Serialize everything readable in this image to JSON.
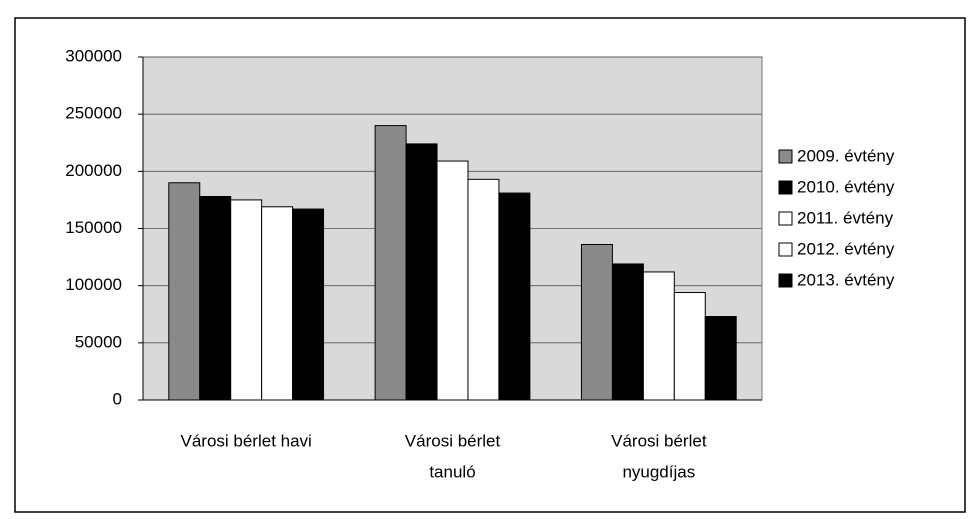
{
  "chart_data": {
    "type": "bar",
    "categories": [
      [
        "Városi bérlet havi"
      ],
      [
        "Városi bérlet",
        "tanuló"
      ],
      [
        "Városi bérlet",
        "nyugdíjas"
      ]
    ],
    "series": [
      {
        "name": "2009. évtény",
        "color": "#8a8a8a",
        "values": [
          190000,
          240000,
          136000
        ]
      },
      {
        "name": "2010. évtény",
        "color": "#000000",
        "values": [
          178000,
          224000,
          119000
        ]
      },
      {
        "name": "2011. évtény",
        "color": "#ffffff",
        "values": [
          175000,
          209000,
          112000
        ]
      },
      {
        "name": "2012. évtény",
        "color": "#ffffff",
        "values": [
          169000,
          193000,
          94000
        ]
      },
      {
        "name": "2013. évtény",
        "color": "#000000",
        "values": [
          167000,
          181000,
          73000
        ]
      }
    ],
    "ylim": [
      0,
      300000
    ],
    "yticks": [
      0,
      50000,
      100000,
      150000,
      200000,
      250000,
      300000
    ],
    "grid": true,
    "legend": "right"
  }
}
